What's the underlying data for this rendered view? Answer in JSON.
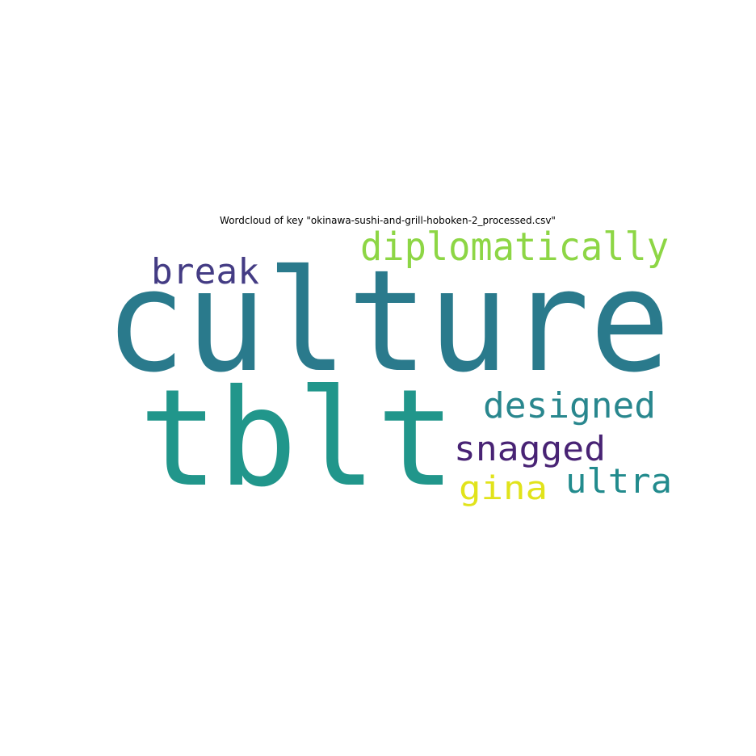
{
  "title": "Wordcloud of key \"okinawa-sushi-and-grill-hoboken-2_processed.csv\"",
  "words": [
    {
      "text": "culture",
      "color": "#2a7a8c"
    },
    {
      "text": "tblt",
      "color": "#21968b"
    },
    {
      "text": "diplomatically",
      "color": "#8dd645"
    },
    {
      "text": "break",
      "color": "#443c84"
    },
    {
      "text": "designed",
      "color": "#29878e"
    },
    {
      "text": "snagged",
      "color": "#482374"
    },
    {
      "text": "ultra",
      "color": "#228b8d"
    },
    {
      "text": "gina",
      "color": "#e1e31b"
    }
  ]
}
